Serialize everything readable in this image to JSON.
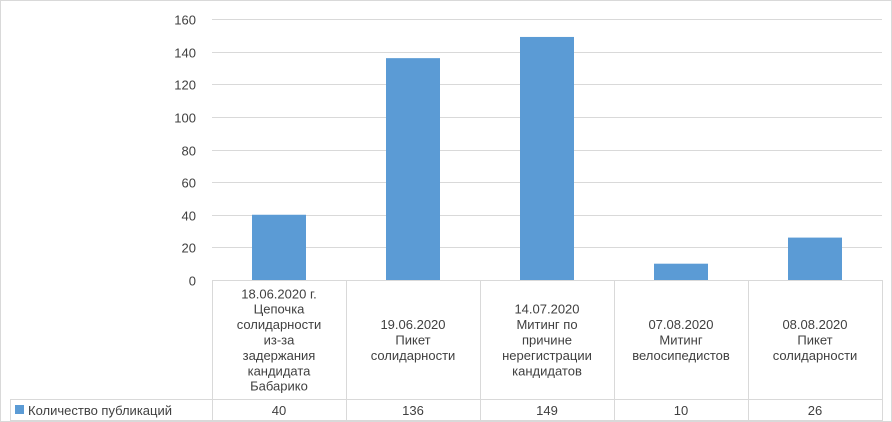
{
  "chart_data": {
    "type": "bar",
    "categories": [
      [
        "18.06.2020 г.",
        "Цепочка",
        "солидарности",
        "из-за",
        "задержания",
        "кандидата",
        "Бабарико"
      ],
      [
        "19.06.2020",
        "Пикет",
        "солидарности"
      ],
      [
        "14.07.2020",
        "Митинг по",
        "причине",
        "нерегистрации",
        "кандидатов"
      ],
      [
        "07.08.2020",
        "Митинг",
        "велосипедистов"
      ],
      [
        "08.08.2020",
        "Пикет",
        "солидарности"
      ]
    ],
    "series": [
      {
        "name": "Количество публикаций",
        "values": [
          40,
          136,
          149,
          10,
          26
        ],
        "color": "#5b9bd5"
      }
    ],
    "ylim": [
      0,
      160
    ],
    "yticks": [
      0,
      20,
      40,
      60,
      80,
      100,
      120,
      140,
      160
    ],
    "grid": true,
    "legend": "data-table"
  }
}
